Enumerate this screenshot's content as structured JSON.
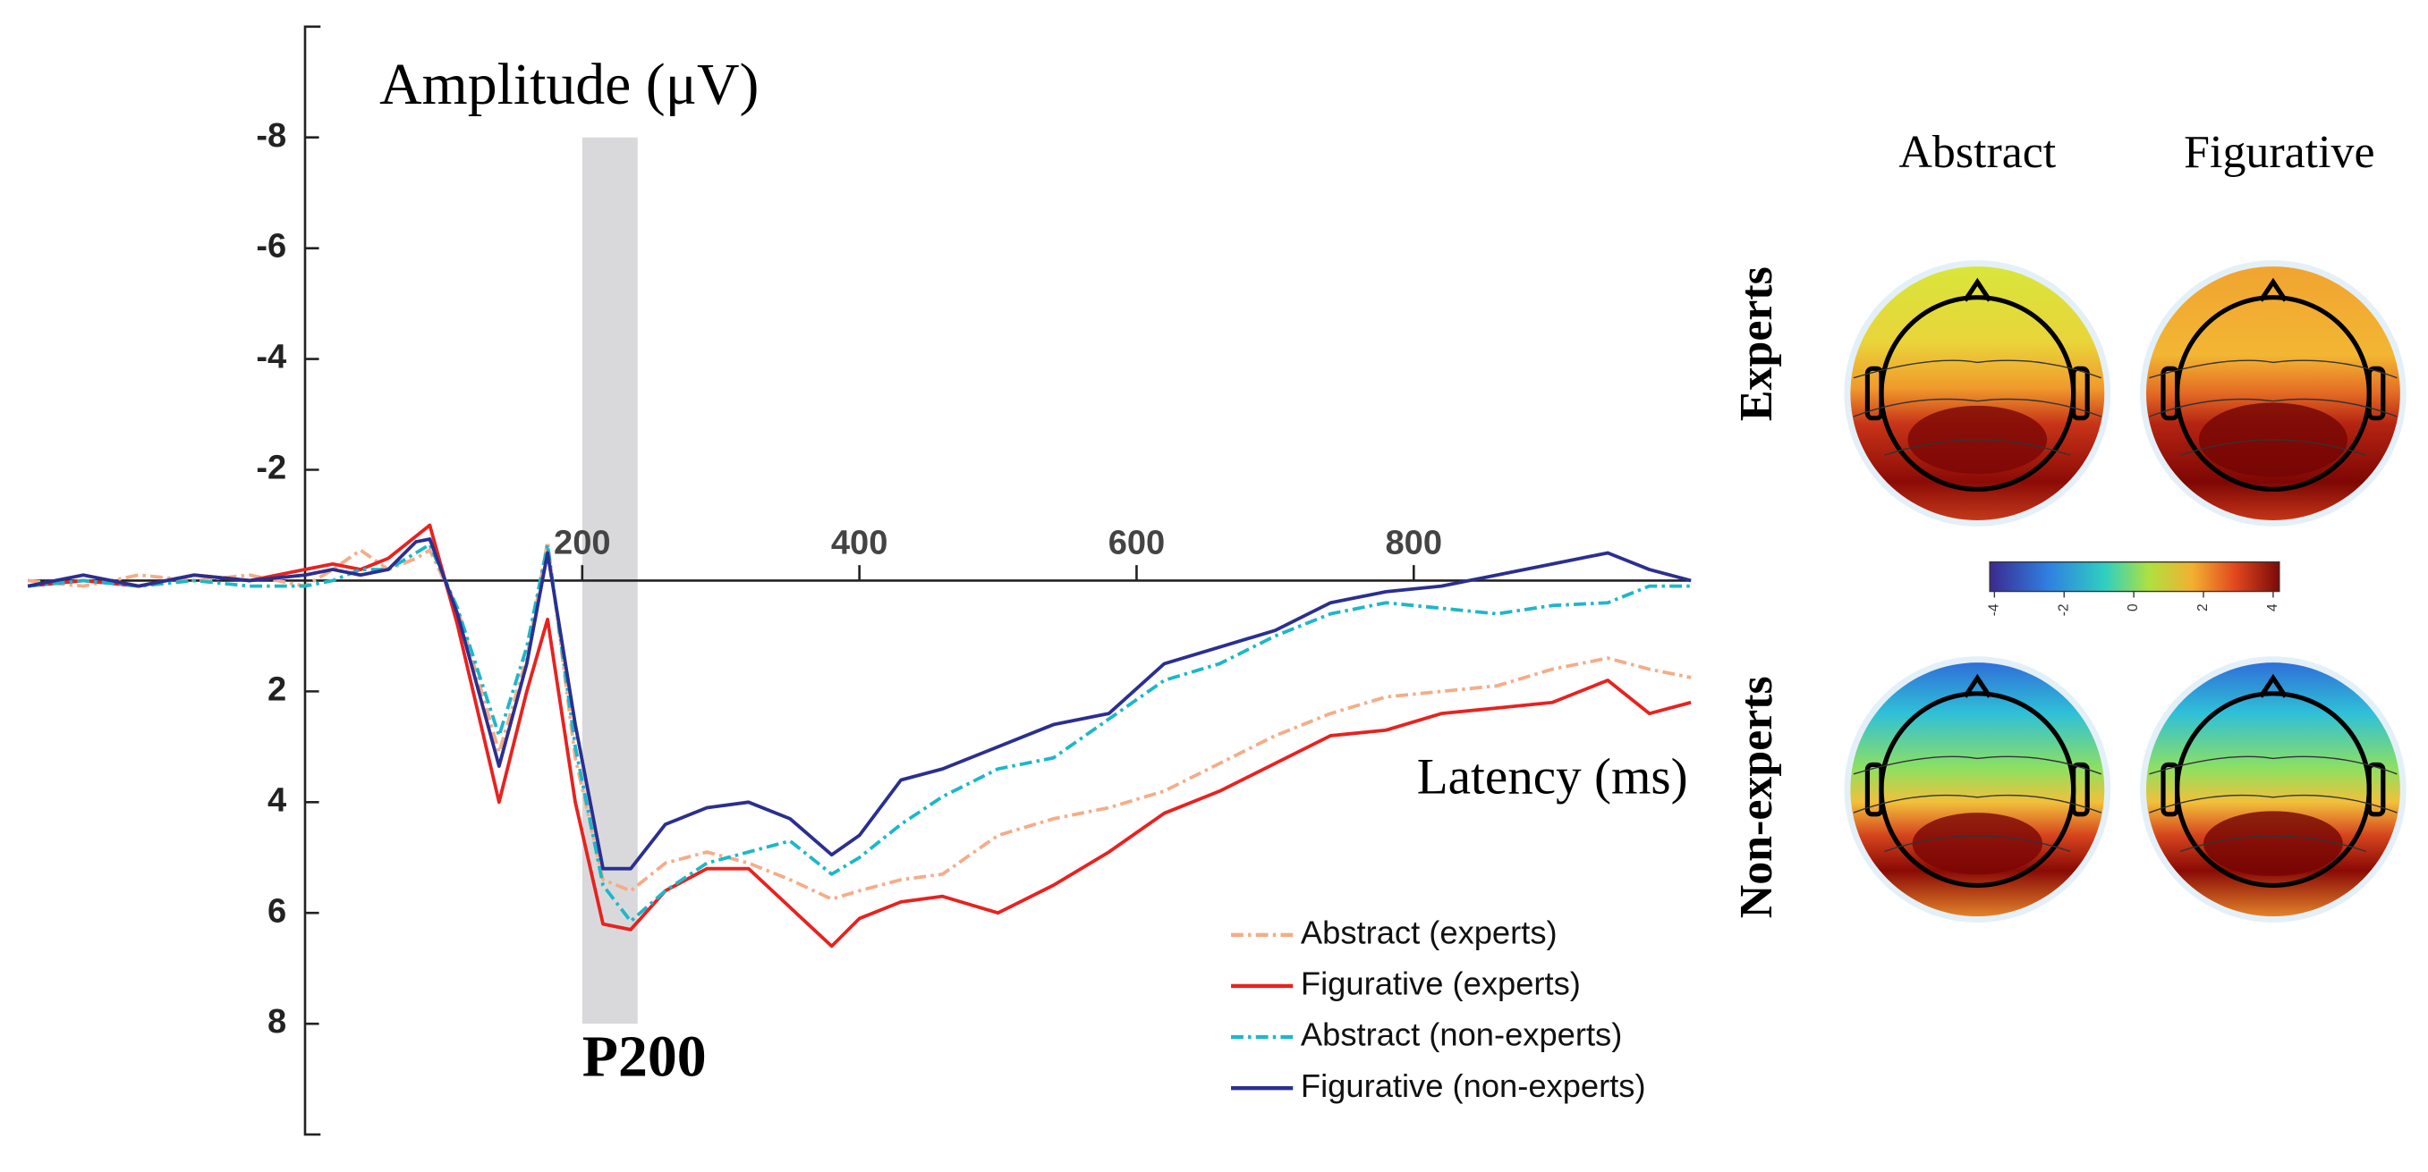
{
  "chart_data": {
    "type": "line",
    "ylabel": "Amplitude (μV)",
    "xlabel": "Latency (ms)",
    "x": [
      -200,
      -160,
      -120,
      -80,
      -40,
      0,
      20,
      40,
      60,
      80,
      90,
      110,
      140,
      160,
      175,
      195,
      215,
      235,
      260,
      290,
      320,
      350,
      380,
      400,
      430,
      460,
      500,
      540,
      580,
      620,
      660,
      700,
      740,
      780,
      820,
      860,
      900,
      940,
      970,
      1000
    ],
    "xlim": [
      -200,
      1000
    ],
    "xticks": [
      200,
      400,
      600,
      800
    ],
    "ylim": [
      -10,
      10
    ],
    "yticks": [
      -8,
      -6,
      -4,
      -2,
      2,
      4,
      6,
      8
    ],
    "y_inverted": true,
    "shade": {
      "x": [
        200,
        240
      ],
      "y": [
        -8,
        8
      ],
      "label": "P200",
      "color": "#d9d9db"
    },
    "legend": "lower right",
    "series": [
      {
        "name": "Abstract (experts)",
        "color": "#f5ac88",
        "style": "dashdot",
        "values": [
          0.0,
          0.1,
          -0.1,
          0.0,
          -0.1,
          0.1,
          -0.2,
          -0.55,
          -0.2,
          -0.4,
          -0.55,
          0.5,
          3.1,
          1.4,
          -0.7,
          3.2,
          5.4,
          5.6,
          5.1,
          4.9,
          5.1,
          5.4,
          5.75,
          5.6,
          5.4,
          5.3,
          4.6,
          4.3,
          4.1,
          3.8,
          3.3,
          2.8,
          2.4,
          2.1,
          2.0,
          1.9,
          1.6,
          1.4,
          1.6,
          1.75
        ]
      },
      {
        "name": "Figurative (experts)",
        "color": "#e8221f",
        "style": "solid",
        "values": [
          0.1,
          0.0,
          0.1,
          -0.1,
          0.0,
          -0.2,
          -0.3,
          -0.2,
          -0.4,
          -0.8,
          -1.0,
          0.8,
          4.0,
          2.0,
          0.7,
          4.0,
          6.2,
          6.3,
          5.6,
          5.2,
          5.2,
          5.9,
          6.6,
          6.1,
          5.8,
          5.7,
          6.0,
          5.5,
          4.9,
          4.2,
          3.8,
          3.3,
          2.8,
          2.7,
          2.4,
          2.3,
          2.2,
          1.8,
          2.4,
          2.2
        ]
      },
      {
        "name": "Abstract (non-experts)",
        "color": "#1db7c9",
        "style": "dashdot",
        "values": [
          0.1,
          0.0,
          0.1,
          0.0,
          0.1,
          0.1,
          0.0,
          -0.2,
          -0.2,
          -0.5,
          -0.65,
          0.5,
          2.8,
          1.2,
          -0.65,
          3.0,
          5.5,
          6.15,
          5.6,
          5.1,
          4.9,
          4.7,
          5.3,
          5.0,
          4.4,
          3.9,
          3.4,
          3.2,
          2.5,
          1.8,
          1.5,
          1.0,
          0.6,
          0.4,
          0.5,
          0.6,
          0.45,
          0.4,
          0.1,
          0.1
        ]
      },
      {
        "name": "Figurative (non-experts)",
        "color": "#2b2f8f",
        "style": "solid",
        "values": [
          0.1,
          -0.1,
          0.1,
          -0.1,
          0.0,
          -0.1,
          -0.2,
          -0.1,
          -0.2,
          -0.7,
          -0.75,
          0.6,
          3.35,
          1.5,
          -0.5,
          2.6,
          5.2,
          5.2,
          4.4,
          4.1,
          4.0,
          4.3,
          4.95,
          4.6,
          3.6,
          3.4,
          3.0,
          2.6,
          2.4,
          1.5,
          1.2,
          0.9,
          0.4,
          0.2,
          0.1,
          -0.1,
          -0.3,
          -0.5,
          -0.2,
          0.0
        ]
      }
    ]
  },
  "topomaps": {
    "columns": [
      "Abstract",
      "Figurative"
    ],
    "rows": [
      "Experts",
      "Non-experts"
    ],
    "colorbar": {
      "lim": [
        -4,
        4
      ],
      "ticks": [
        -4,
        -2,
        0,
        2,
        4
      ]
    }
  }
}
